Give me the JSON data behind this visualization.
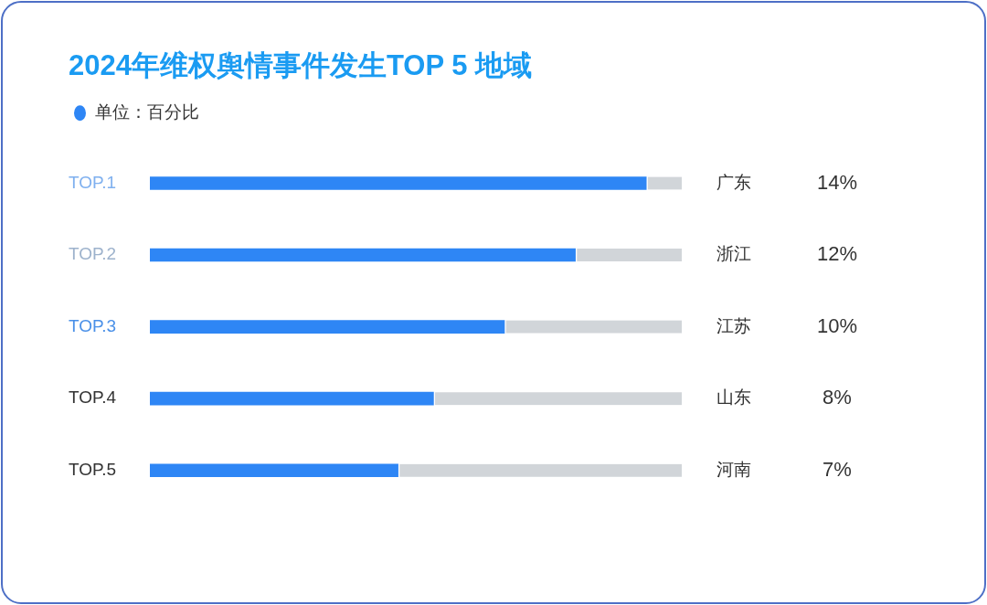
{
  "chart_data": {
    "type": "bar",
    "orientation": "horizontal",
    "stacked": true,
    "title": "2024年维权舆情事件发生TOP 5 地域",
    "categories": [
      "TOP.1",
      "TOP.2",
      "TOP.3",
      "TOP.4",
      "TOP.5"
    ],
    "y2_categories": [
      "广东",
      "浙江",
      "江苏",
      "山东",
      "河南"
    ],
    "series": [
      {
        "name": "单位：百分比",
        "color": "#2e86f5",
        "values": [
          14,
          12,
          10,
          8,
          7
        ],
        "value_labels": [
          "14%",
          "12%",
          "10%",
          "8%",
          "7%"
        ]
      },
      {
        "color": "#d1d5d9",
        "values": [
          1,
          3,
          5,
          7,
          8
        ]
      }
    ],
    "xlim": [
      0,
      15
    ],
    "legend": "top left",
    "tick_labels": "y",
    "grid": false
  }
}
